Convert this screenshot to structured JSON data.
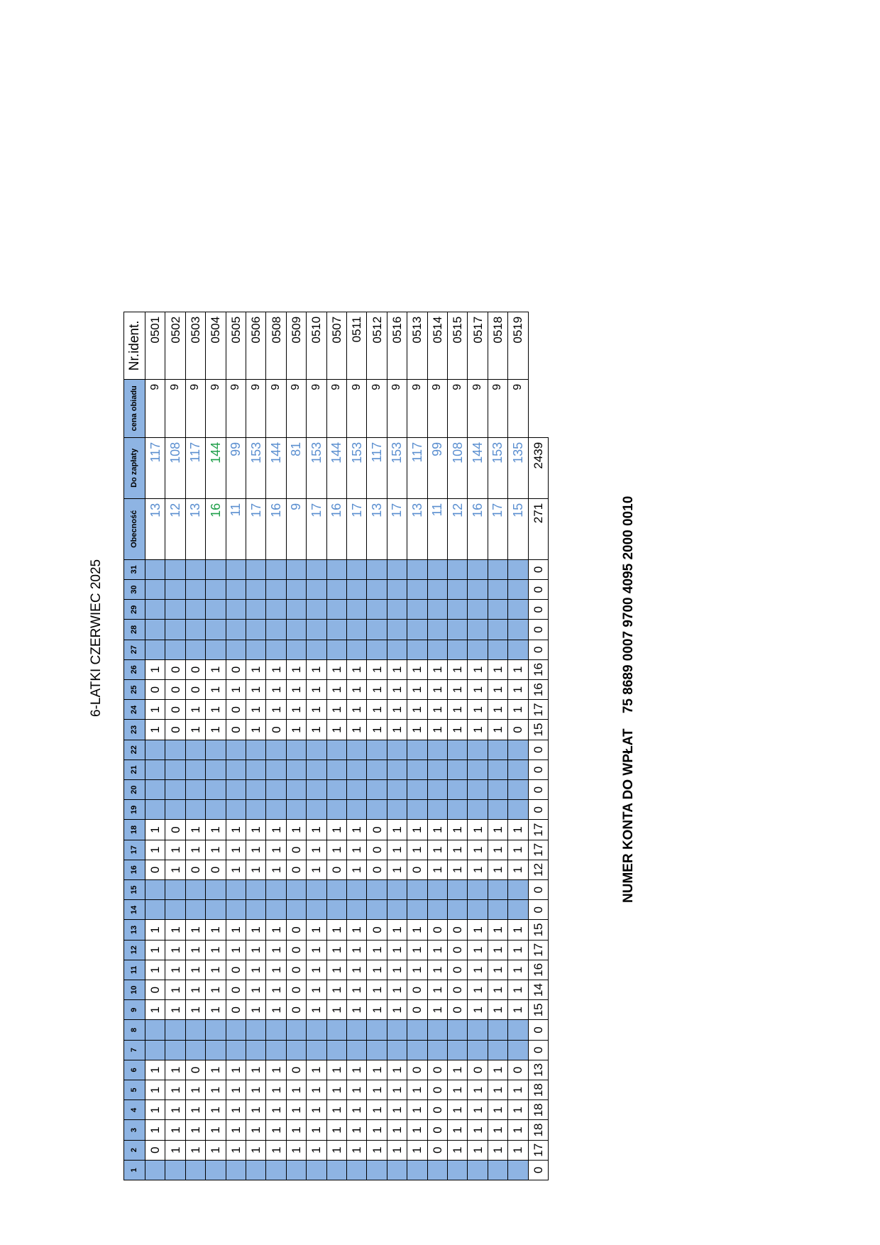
{
  "title": "6-LATKI CZERWIEC 2025",
  "account": {
    "label": "NUMER KONTA  DO WPŁAT",
    "number": "75 8689 0007 9700 4095 2000 0010"
  },
  "headers": {
    "days": [
      "1",
      "2",
      "3",
      "4",
      "5",
      "6",
      "7",
      "8",
      "9",
      "10",
      "11",
      "12",
      "13",
      "14",
      "15",
      "16",
      "17",
      "18",
      "19",
      "20",
      "21",
      "22",
      "23",
      "24",
      "25",
      "26",
      "27",
      "28",
      "29",
      "30",
      "31"
    ],
    "attendance": "Obecność",
    "due": "Do zapłaty",
    "price": "cena obiadu",
    "id": "Nr.ident."
  },
  "off_days": [
    1,
    7,
    8,
    14,
    15,
    19,
    20,
    21,
    22,
    27,
    28,
    29,
    30,
    31
  ],
  "highlight_color": "#21A04B",
  "rows": [
    {
      "id": "0501",
      "price": "9",
      "obecnosc": "13",
      "do_zaplaty": "117",
      "days": {
        "2": "0",
        "3": "1",
        "4": "1",
        "5": "1",
        "6": "1",
        "9": "1",
        "10": "0",
        "11": "1",
        "12": "1",
        "13": "1",
        "16": "0",
        "17": "1",
        "18": "1",
        "23": "1",
        "24": "1",
        "25": "0",
        "26": "1"
      }
    },
    {
      "id": "0502",
      "price": "9",
      "obecnosc": "12",
      "do_zaplaty": "108",
      "days": {
        "2": "1",
        "3": "1",
        "4": "1",
        "5": "1",
        "6": "1",
        "9": "1",
        "10": "1",
        "11": "1",
        "12": "1",
        "13": "1",
        "16": "1",
        "17": "1",
        "18": "0",
        "23": "0",
        "24": "0",
        "25": "0",
        "26": "0"
      }
    },
    {
      "id": "0503",
      "price": "9",
      "obecnosc": "13",
      "do_zaplaty": "117",
      "days": {
        "2": "1",
        "3": "1",
        "4": "1",
        "5": "1",
        "6": "0",
        "9": "1",
        "10": "1",
        "11": "1",
        "12": "1",
        "13": "1",
        "16": "0",
        "17": "1",
        "18": "1",
        "23": "1",
        "24": "1",
        "25": "0",
        "26": "0"
      }
    },
    {
      "id": "0504",
      "price": "9",
      "obecnosc": "16",
      "do_zaplaty": "144",
      "highlight": true,
      "days": {
        "2": "1",
        "3": "1",
        "4": "1",
        "5": "1",
        "6": "1",
        "9": "1",
        "10": "1",
        "11": "1",
        "12": "1",
        "13": "1",
        "16": "0",
        "17": "1",
        "18": "1",
        "23": "1",
        "24": "1",
        "25": "1",
        "26": "1"
      }
    },
    {
      "id": "0505",
      "price": "9",
      "obecnosc": "11",
      "do_zaplaty": "99",
      "days": {
        "2": "1",
        "3": "1",
        "4": "1",
        "5": "1",
        "6": "1",
        "9": "0",
        "10": "0",
        "11": "0",
        "12": "1",
        "13": "1",
        "16": "1",
        "17": "1",
        "18": "1",
        "23": "0",
        "24": "0",
        "25": "1",
        "26": "0"
      }
    },
    {
      "id": "0506",
      "price": "9",
      "obecnosc": "17",
      "do_zaplaty": "153",
      "days": {
        "2": "1",
        "3": "1",
        "4": "1",
        "5": "1",
        "6": "1",
        "9": "1",
        "10": "1",
        "11": "1",
        "12": "1",
        "13": "1",
        "16": "1",
        "17": "1",
        "18": "1",
        "23": "1",
        "24": "1",
        "25": "1",
        "26": "1"
      }
    },
    {
      "id": "0508",
      "price": "9",
      "obecnosc": "16",
      "do_zaplaty": "144",
      "days": {
        "2": "1",
        "3": "1",
        "4": "1",
        "5": "1",
        "6": "1",
        "9": "1",
        "10": "1",
        "11": "1",
        "12": "1",
        "13": "1",
        "16": "1",
        "17": "1",
        "18": "1",
        "23": "0",
        "24": "1",
        "25": "1",
        "26": "1"
      }
    },
    {
      "id": "0509",
      "price": "9",
      "obecnosc": "9",
      "do_zaplaty": "81",
      "days": {
        "2": "1",
        "3": "1",
        "4": "1",
        "5": "1",
        "6": "0",
        "9": "0",
        "10": "0",
        "11": "0",
        "12": "0",
        "13": "0",
        "16": "0",
        "17": "0",
        "18": "1",
        "23": "1",
        "24": "1",
        "25": "1",
        "26": "1"
      }
    },
    {
      "id": "0510",
      "price": "9",
      "obecnosc": "17",
      "do_zaplaty": "153",
      "days": {
        "2": "1",
        "3": "1",
        "4": "1",
        "5": "1",
        "6": "1",
        "9": "1",
        "10": "1",
        "11": "1",
        "12": "1",
        "13": "1",
        "16": "1",
        "17": "1",
        "18": "1",
        "23": "1",
        "24": "1",
        "25": "1",
        "26": "1"
      }
    },
    {
      "id": "0507",
      "price": "9",
      "obecnosc": "16",
      "do_zaplaty": "144",
      "days": {
        "2": "1",
        "3": "1",
        "4": "1",
        "5": "1",
        "6": "1",
        "9": "1",
        "10": "1",
        "11": "1",
        "12": "1",
        "13": "1",
        "16": "0",
        "17": "1",
        "18": "1",
        "23": "1",
        "24": "1",
        "25": "1",
        "26": "1"
      }
    },
    {
      "id": "0511",
      "price": "9",
      "obecnosc": "17",
      "do_zaplaty": "153",
      "days": {
        "2": "1",
        "3": "1",
        "4": "1",
        "5": "1",
        "6": "1",
        "9": "1",
        "10": "1",
        "11": "1",
        "12": "1",
        "13": "1",
        "16": "1",
        "17": "1",
        "18": "1",
        "23": "1",
        "24": "1",
        "25": "1",
        "26": "1"
      }
    },
    {
      "id": "0512",
      "price": "9",
      "obecnosc": "13",
      "do_zaplaty": "117",
      "days": {
        "2": "1",
        "3": "1",
        "4": "1",
        "5": "1",
        "6": "1",
        "9": "1",
        "10": "1",
        "11": "1",
        "12": "1",
        "13": "0",
        "16": "0",
        "17": "0",
        "18": "0",
        "23": "1",
        "24": "1",
        "25": "1",
        "26": "1"
      }
    },
    {
      "id": "0516",
      "price": "9",
      "obecnosc": "17",
      "do_zaplaty": "153",
      "days": {
        "2": "1",
        "3": "1",
        "4": "1",
        "5": "1",
        "6": "1",
        "9": "1",
        "10": "1",
        "11": "1",
        "12": "1",
        "13": "1",
        "16": "1",
        "17": "1",
        "18": "1",
        "23": "1",
        "24": "1",
        "25": "1",
        "26": "1"
      }
    },
    {
      "id": "0513",
      "price": "9",
      "obecnosc": "13",
      "do_zaplaty": "117",
      "days": {
        "2": "1",
        "3": "1",
        "4": "1",
        "5": "1",
        "6": "0",
        "9": "0",
        "10": "0",
        "11": "1",
        "12": "1",
        "13": "1",
        "16": "0",
        "17": "1",
        "18": "1",
        "23": "1",
        "24": "1",
        "25": "1",
        "26": "1"
      }
    },
    {
      "id": "0514",
      "price": "9",
      "obecnosc": "11",
      "do_zaplaty": "99",
      "days": {
        "2": "0",
        "3": "0",
        "4": "0",
        "5": "0",
        "6": "0",
        "9": "1",
        "10": "1",
        "11": "1",
        "12": "1",
        "13": "0",
        "16": "1",
        "17": "1",
        "18": "1",
        "23": "1",
        "24": "1",
        "25": "1",
        "26": "1"
      }
    },
    {
      "id": "0515",
      "price": "9",
      "obecnosc": "12",
      "do_zaplaty": "108",
      "days": {
        "2": "1",
        "3": "1",
        "4": "1",
        "5": "1",
        "6": "1",
        "9": "0",
        "10": "0",
        "11": "0",
        "12": "0",
        "13": "0",
        "16": "1",
        "17": "1",
        "18": "1",
        "23": "1",
        "24": "1",
        "25": "1",
        "26": "1"
      }
    },
    {
      "id": "0517",
      "price": "9",
      "obecnosc": "16",
      "do_zaplaty": "144",
      "days": {
        "2": "1",
        "3": "1",
        "4": "1",
        "5": "1",
        "6": "0",
        "9": "1",
        "10": "1",
        "11": "1",
        "12": "1",
        "13": "1",
        "16": "1",
        "17": "1",
        "18": "1",
        "23": "1",
        "24": "1",
        "25": "1",
        "26": "1"
      }
    },
    {
      "id": "0518",
      "price": "9",
      "obecnosc": "17",
      "do_zaplaty": "153",
      "days": {
        "2": "1",
        "3": "1",
        "4": "1",
        "5": "1",
        "6": "1",
        "9": "1",
        "10": "1",
        "11": "1",
        "12": "1",
        "13": "1",
        "16": "1",
        "17": "1",
        "18": "1",
        "23": "1",
        "24": "1",
        "25": "1",
        "26": "1"
      }
    },
    {
      "id": "0519",
      "price": "9",
      "obecnosc": "15",
      "do_zaplaty": "135",
      "days": {
        "2": "1",
        "3": "1",
        "4": "1",
        "5": "1",
        "6": "0",
        "9": "1",
        "10": "1",
        "11": "1",
        "12": "1",
        "13": "1",
        "16": "1",
        "17": "1",
        "18": "1",
        "23": "0",
        "24": "1",
        "25": "1",
        "26": "1"
      }
    }
  ],
  "totals": {
    "days": [
      "0",
      "17",
      "18",
      "18",
      "18",
      "13",
      "0",
      "0",
      "15",
      "14",
      "16",
      "17",
      "15",
      "0",
      "0",
      "12",
      "17",
      "17",
      "0",
      "0",
      "0",
      "0",
      "15",
      "17",
      "16",
      "16",
      "0",
      "0",
      "0",
      "0",
      "0"
    ],
    "obecnosc": "271",
    "do_zaplaty": "2439"
  }
}
